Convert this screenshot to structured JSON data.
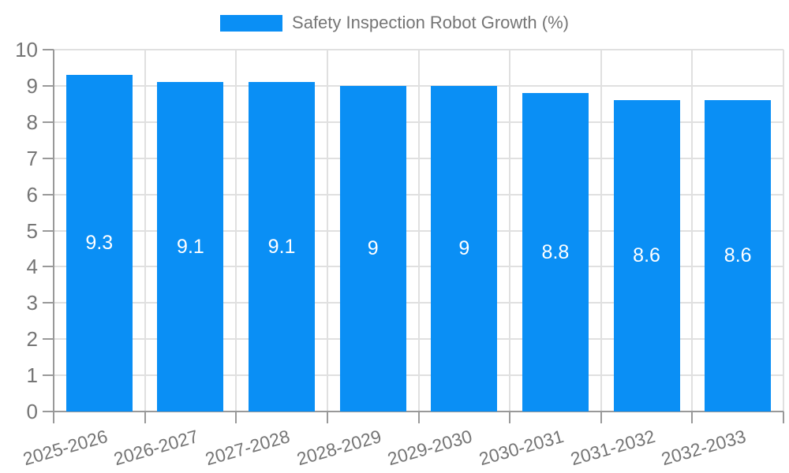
{
  "legend": {
    "label": "Safety Inspection Robot Growth (%)"
  },
  "chart_data": {
    "type": "bar",
    "title": "",
    "series_name": "Safety Inspection Robot Growth (%)",
    "categories": [
      "2025-2026",
      "2026-2027",
      "2027-2028",
      "2028-2029",
      "2029-2030",
      "2030-2031",
      "2031-2032",
      "2032-2033"
    ],
    "values": [
      9.3,
      9.1,
      9.1,
      9,
      9,
      8.8,
      8.6,
      8.6
    ],
    "data_labels": [
      "9.3",
      "9.1",
      "9.1",
      "9",
      "9",
      "8.8",
      "8.6",
      "8.6"
    ],
    "xlabel": "",
    "ylabel": "",
    "ylim": [
      0,
      10
    ],
    "ytick_labels": [
      "0",
      "1",
      "2",
      "3",
      "4",
      "5",
      "6",
      "7",
      "8",
      "9",
      "10"
    ],
    "grid": true,
    "legend_position": "top",
    "x_label_rotation_deg": -16,
    "colors": {
      "bar": "#0a8ff5",
      "bar_label_text": "#ffffff",
      "grid_line": "#e0e0e0",
      "axis_line": "#999999",
      "axis_text": "#757575"
    }
  }
}
